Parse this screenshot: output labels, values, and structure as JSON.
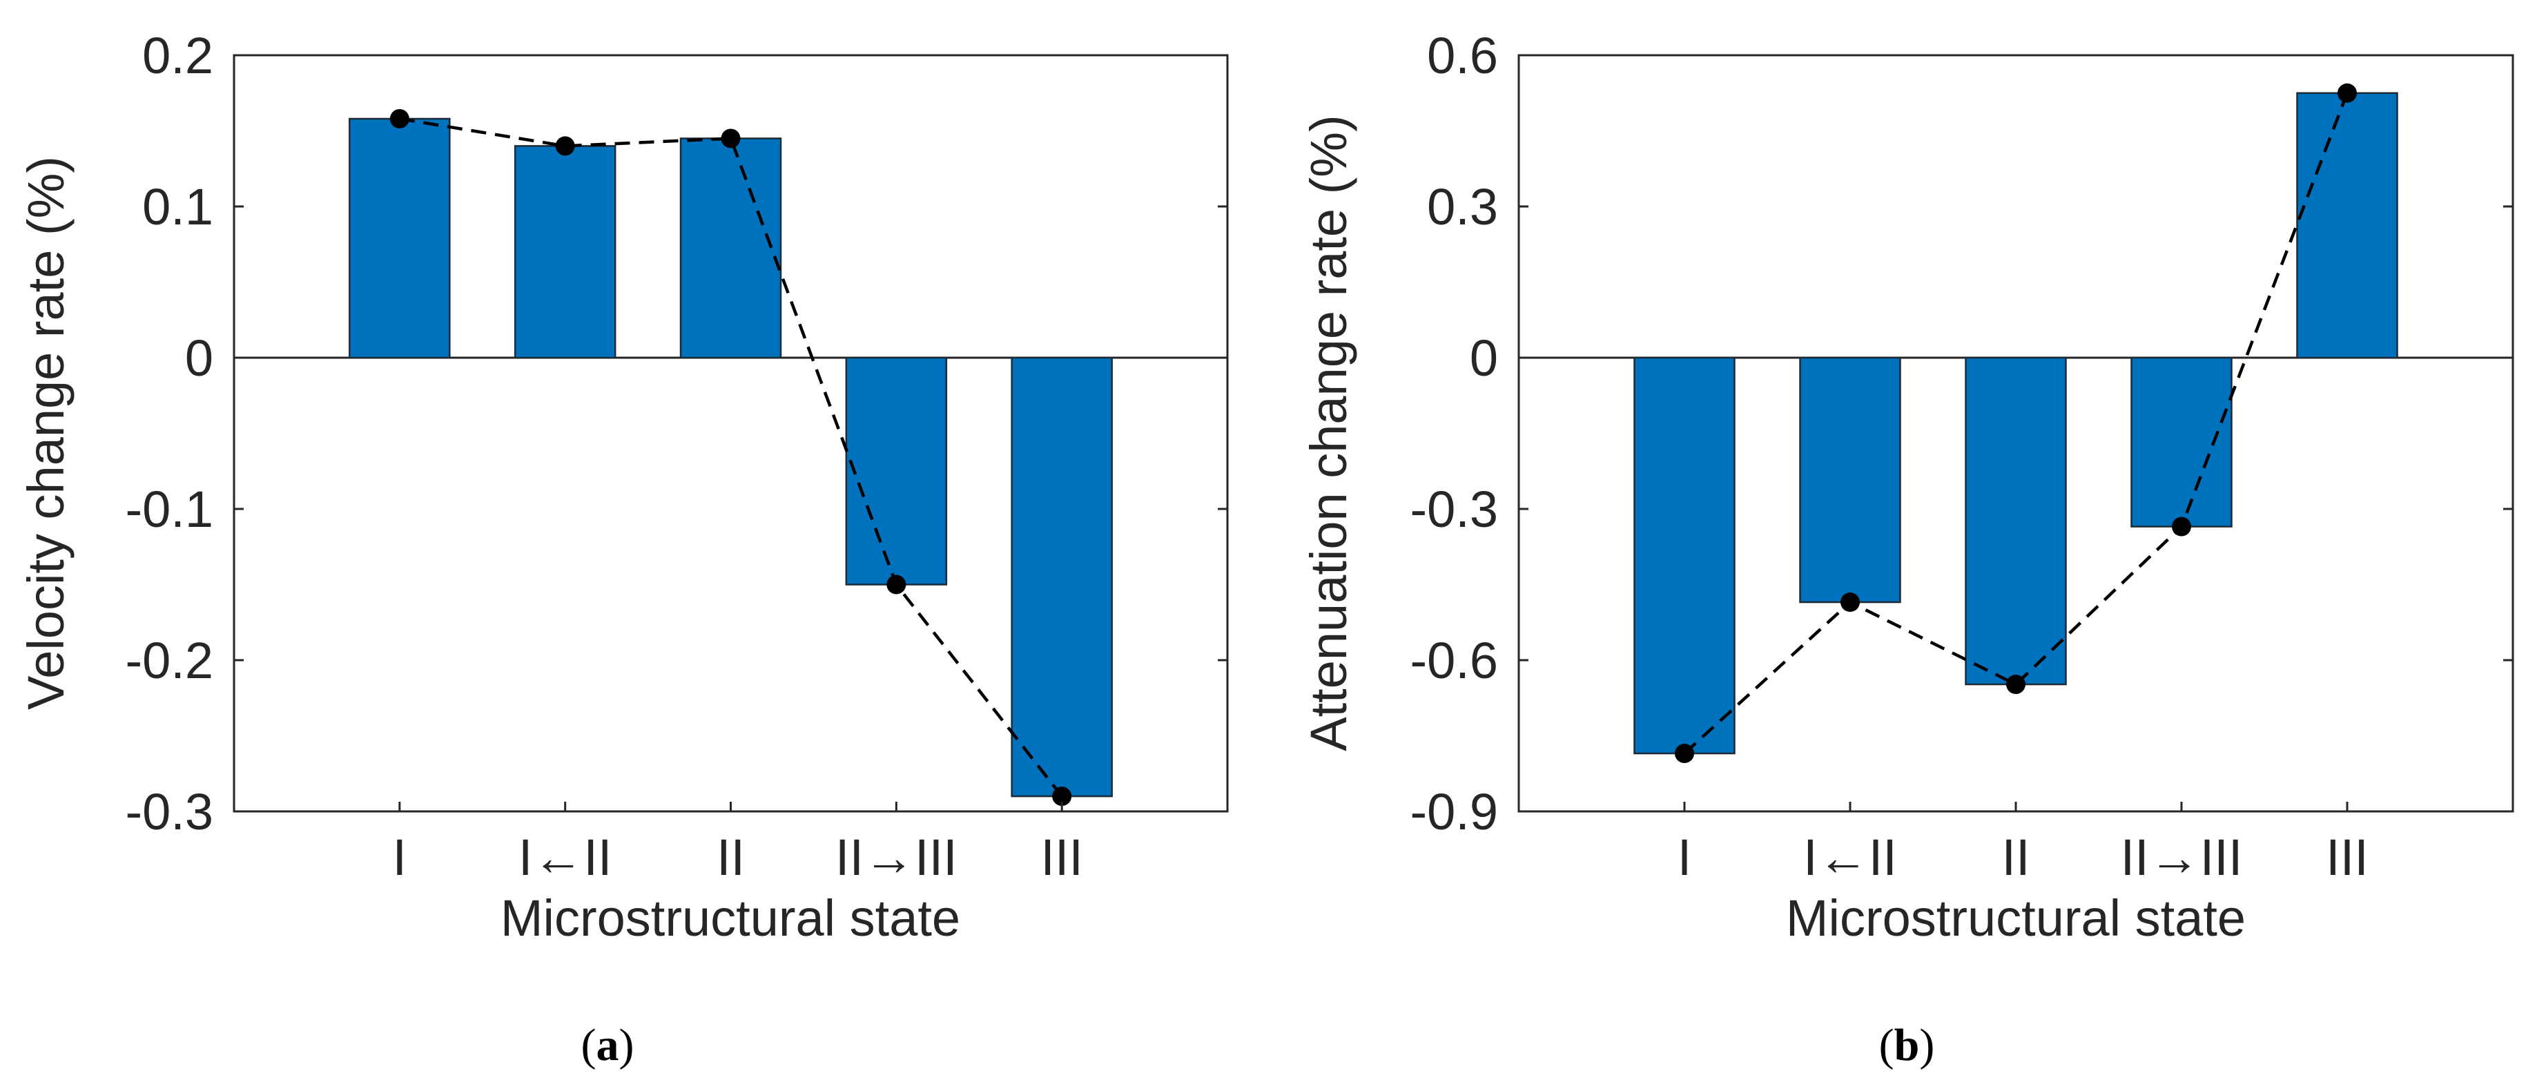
{
  "captions": {
    "a": {
      "open": "(",
      "letter": "a",
      "close": ")"
    },
    "b": {
      "open": "(",
      "letter": "b",
      "close": ")"
    }
  },
  "colors": {
    "bar_fill": "#0072BD",
    "bar_edge": "#1b2a36",
    "line": "#000000",
    "marker": "#000000",
    "axis": "#262626"
  },
  "chart_data": [
    {
      "id": "a",
      "type": "bar",
      "title": "",
      "xlabel": "Microstructural state",
      "ylabel": "Velocity change rate (%)",
      "categories": [
        "I",
        "I←II",
        "II",
        "II→III",
        "III"
      ],
      "values": [
        0.158,
        0.14,
        0.145,
        -0.15,
        -0.29
      ],
      "line_overlay": {
        "style": "dashed",
        "marker": "circle",
        "values": [
          0.158,
          0.14,
          0.145,
          -0.15,
          -0.29
        ]
      },
      "ylim": [
        -0.3,
        0.2
      ],
      "yticks": [
        0.2,
        0.1,
        0,
        -0.1,
        -0.2,
        -0.3
      ],
      "ytick_labels": [
        "0.2",
        "0.1",
        "0",
        "-0.1",
        "-0.2",
        "-0.3"
      ],
      "grid": false
    },
    {
      "id": "b",
      "type": "bar",
      "title": "",
      "xlabel": "Microstructural state",
      "ylabel": "Attenuation change rate (%)",
      "categories": [
        "I",
        "I←II",
        "II",
        "II→III",
        "III"
      ],
      "values": [
        -0.785,
        -0.485,
        -0.648,
        -0.335,
        0.525
      ],
      "line_overlay": {
        "style": "dashed",
        "marker": "circle",
        "values": [
          -0.785,
          -0.485,
          -0.648,
          -0.335,
          0.525
        ]
      },
      "ylim": [
        -0.9,
        0.6
      ],
      "yticks": [
        0.6,
        0.3,
        0,
        -0.3,
        -0.6,
        -0.9
      ],
      "ytick_labels": [
        "0.6",
        "0.3",
        "0",
        "-0.3",
        "-0.6",
        "-0.9"
      ],
      "grid": false
    }
  ]
}
